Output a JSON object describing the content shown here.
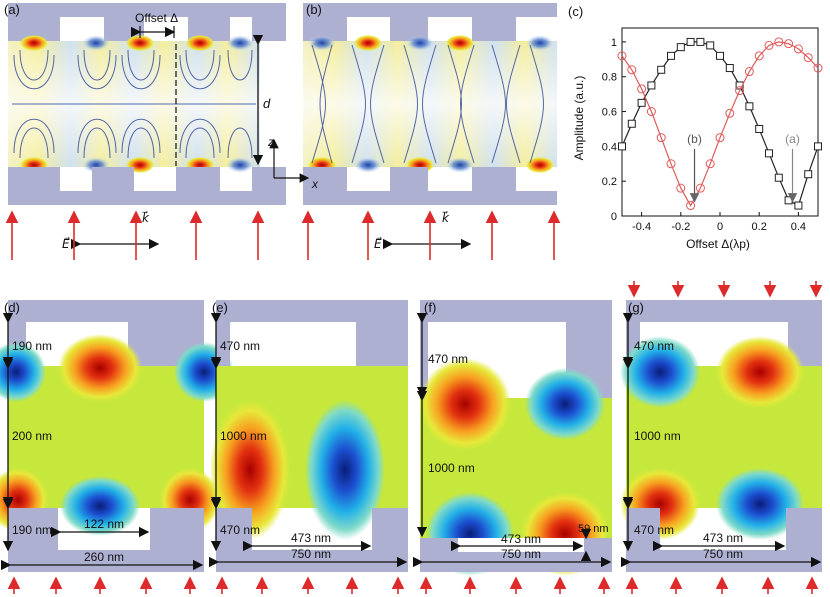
{
  "panels": {
    "a": {
      "label": "(a)",
      "offset_label": "Offset Δ",
      "d_label": "d",
      "k_label": "k⃗",
      "e_label": "E⃗"
    },
    "b": {
      "label": "(b)",
      "k_label": "k⃗",
      "e_label": "E⃗",
      "z_label": "z",
      "x_label": "x"
    },
    "d": {
      "label": "(d)",
      "top_dim": "190 nm",
      "mid_dim": "200 nm",
      "bot_dim": "190 nm",
      "gap_dim": "122 nm",
      "period_dim": "260 nm"
    },
    "e": {
      "label": "(e)",
      "top_dim": "470 nm",
      "mid_dim": "1000 nm",
      "bot_dim": "470 nm",
      "gap_dim": "473 nm",
      "period_dim": "750 nm"
    },
    "f": {
      "label": "(f)",
      "top_dim": "470 nm",
      "mid_dim": "1000 nm",
      "gap_dim": "473 nm",
      "period_dim": "750 nm",
      "small_dim": "59 nm"
    },
    "g": {
      "label": "(g)",
      "top_dim": "470 nm",
      "mid_dim": "1000 nm",
      "bot_dim": "470 nm",
      "gap_dim": "473 nm",
      "period_dim": "750 nm"
    }
  },
  "chart_data": {
    "type": "line",
    "panel_label": "(c)",
    "xlabel": "Offset Δ(λp)",
    "ylabel": "Amplitude (a.u.)",
    "xlim": [
      -0.5,
      0.5
    ],
    "ylim": [
      0,
      1.08
    ],
    "xticks": [
      -0.4,
      -0.2,
      0,
      0.2,
      0.4
    ],
    "xtick_labels": [
      "-0.4",
      "-0.2",
      "0",
      "0.2",
      "0.4"
    ],
    "yticks": [
      0,
      0.2,
      0.4,
      0.6,
      0.8,
      1
    ],
    "ytick_labels": [
      "0",
      "0.2",
      "0.4",
      "0.6",
      "0.8",
      "1"
    ],
    "grid": false,
    "series": [
      {
        "marker": "square",
        "color": "#222222",
        "x": [
          -0.5,
          -0.45,
          -0.4,
          -0.35,
          -0.3,
          -0.25,
          -0.2,
          -0.15,
          -0.1,
          -0.05,
          0,
          0.05,
          0.1,
          0.15,
          0.2,
          0.25,
          0.3,
          0.35,
          0.4,
          0.45,
          0.5
        ],
        "y": [
          0.4,
          0.53,
          0.65,
          0.75,
          0.84,
          0.92,
          0.97,
          1.0,
          1.0,
          0.98,
          0.92,
          0.85,
          0.75,
          0.63,
          0.5,
          0.36,
          0.22,
          0.09,
          0.06,
          0.24,
          0.4
        ]
      },
      {
        "marker": "circle",
        "color": "#e05a5a",
        "x": [
          -0.5,
          -0.45,
          -0.4,
          -0.35,
          -0.3,
          -0.25,
          -0.2,
          -0.15,
          -0.1,
          -0.05,
          0,
          0.05,
          0.1,
          0.15,
          0.2,
          0.25,
          0.3,
          0.35,
          0.4,
          0.45,
          0.5
        ],
        "y": [
          0.92,
          0.84,
          0.73,
          0.6,
          0.45,
          0.3,
          0.16,
          0.06,
          0.16,
          0.3,
          0.45,
          0.59,
          0.72,
          0.83,
          0.92,
          0.98,
          1.0,
          0.99,
          0.96,
          0.91,
          0.85
        ]
      }
    ],
    "annotations": [
      {
        "text": "(b)",
        "x": -0.13,
        "y": 0.42,
        "target_x": -0.13,
        "target_y": 0.06,
        "color": "#555555"
      },
      {
        "text": "(a)",
        "x": 0.37,
        "y": 0.42,
        "target_x": 0.37,
        "target_y": 0.06,
        "color": "#888888"
      }
    ]
  },
  "colors": {
    "slab": "#aeb0d2",
    "arrow": "#dd2b2b",
    "field_blue": "#2a58b0",
    "field_yellow": "#f2e060"
  }
}
